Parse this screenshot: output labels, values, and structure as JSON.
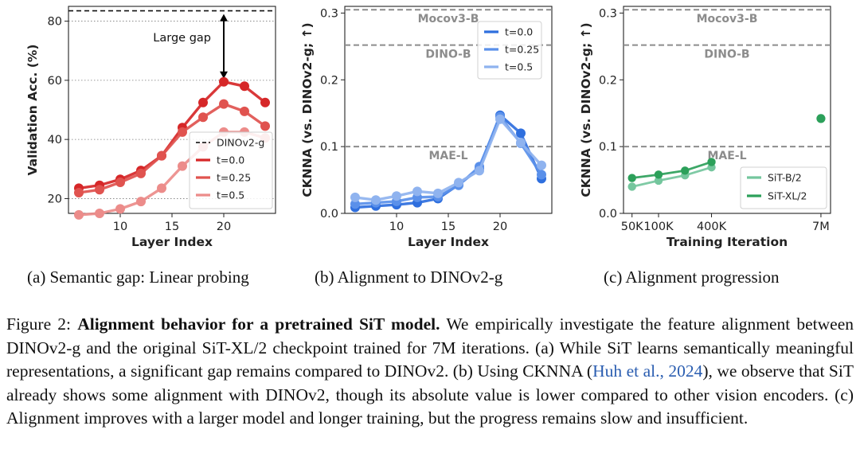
{
  "chart_data": [
    {
      "type": "line",
      "panel": "a",
      "xlabel": "Layer Index",
      "ylabel": "Validation Acc. (%)",
      "xlim": [
        5,
        25
      ],
      "ylim": [
        15,
        85
      ],
      "xticks": [
        10,
        15,
        20
      ],
      "yticks": [
        20,
        40,
        60,
        80
      ],
      "grid": "horizontal dotted",
      "legend_position": "lower-right",
      "legend": [
        "DINOv2-g",
        "t=0.0",
        "t=0.25",
        "t=0.5"
      ],
      "reference_line": {
        "name": "DINOv2-g",
        "value": 83.5,
        "style": "dashed black"
      },
      "annotation": {
        "text": "Large gap",
        "from": 83.5,
        "to": 59.5,
        "x": 20
      },
      "x": [
        6,
        8,
        10,
        12,
        14,
        16,
        18,
        20,
        22,
        24
      ],
      "series": [
        {
          "name": "t=0.0",
          "color": "#d62728",
          "values": [
            23.5,
            24.5,
            26.5,
            29.5,
            34.5,
            44,
            52.5,
            59.5,
            58,
            52.5
          ]
        },
        {
          "name": "t=0.25",
          "color": "#e0534f",
          "values": [
            22,
            23,
            25.5,
            28.5,
            34.5,
            42.5,
            47.5,
            52,
            49.5,
            44.5
          ]
        },
        {
          "name": "t=0.5",
          "color": "#ec8c8a",
          "values": [
            14.5,
            15,
            16.5,
            19,
            23.5,
            31,
            37.5,
            42.5,
            42.5,
            40.5
          ]
        }
      ]
    },
    {
      "type": "line",
      "panel": "b",
      "xlabel": "Layer Index",
      "ylabel": "CKNNA (vs. DINOv2-g; ↑)",
      "xlim": [
        5,
        25
      ],
      "ylim": [
        0,
        0.31
      ],
      "xticks": [
        10,
        15,
        20
      ],
      "yticks": [
        0.0,
        0.1,
        0.2,
        0.3
      ],
      "ytick_labels": [
        "0.0",
        "0.1",
        "0.2",
        "0.3"
      ],
      "legend_position": "upper-right",
      "legend": [
        "t=0.0",
        "t=0.25",
        "t=0.5"
      ],
      "reference_lines": [
        {
          "name": "Mocov3-B",
          "value": 0.305
        },
        {
          "name": "DINO-B",
          "value": 0.252
        },
        {
          "name": "MAE-L",
          "value": 0.1
        }
      ],
      "x": [
        6,
        8,
        10,
        12,
        14,
        16,
        18,
        20,
        22,
        24
      ],
      "series": [
        {
          "name": "t=0.0",
          "color": "#2f6fde",
          "values": [
            0.009,
            0.011,
            0.013,
            0.016,
            0.022,
            0.043,
            0.067,
            0.147,
            0.12,
            0.052
          ]
        },
        {
          "name": "t=0.25",
          "color": "#5a90ea",
          "values": [
            0.014,
            0.016,
            0.018,
            0.024,
            0.025,
            0.042,
            0.07,
            0.145,
            0.105,
            0.058
          ]
        },
        {
          "name": "t=0.5",
          "color": "#8fb3ef",
          "values": [
            0.024,
            0.02,
            0.026,
            0.033,
            0.03,
            0.046,
            0.064,
            0.141,
            0.106,
            0.072
          ]
        }
      ]
    },
    {
      "type": "line",
      "panel": "c",
      "xlabel": "Training Iteration",
      "ylabel": "CKNNA (vs. DINOv2-g; ↑)",
      "xscale": "log",
      "xlim": [
        40000,
        9000000
      ],
      "ylim": [
        0,
        0.31
      ],
      "xticks": [
        50000,
        100000,
        400000,
        7000000
      ],
      "xtick_labels": [
        "50K",
        "100K",
        "400K",
        "7M"
      ],
      "yticks": [
        0.0,
        0.1,
        0.2,
        0.3
      ],
      "ytick_labels": [
        "0.0",
        "0.1",
        "0.2",
        "0.3"
      ],
      "legend_position": "lower-right",
      "legend": [
        "SiT-B/2",
        "SiT-XL/2"
      ],
      "reference_lines": [
        {
          "name": "Mocov3-B",
          "value": 0.305
        },
        {
          "name": "DINO-B",
          "value": 0.252
        },
        {
          "name": "MAE-L",
          "value": 0.1
        }
      ],
      "series": [
        {
          "name": "SiT-B/2",
          "color": "#74c69d",
          "x": [
            50000,
            100000,
            200000,
            400000
          ],
          "values": [
            0.04,
            0.049,
            0.057,
            0.069
          ]
        },
        {
          "name": "SiT-XL/2",
          "color": "#2ca05a",
          "x": [
            50000,
            100000,
            200000,
            400000
          ],
          "values": [
            0.053,
            0.058,
            0.064,
            0.077
          ]
        },
        {
          "name": "SiT-XL/2 (7M)",
          "color": "#2ca05a",
          "x": [
            7000000
          ],
          "values": [
            0.142
          ],
          "markers_only": true
        }
      ]
    }
  ],
  "subcaptions": {
    "a": "(a) Semantic gap: Linear probing",
    "b": "(b) Alignment to DINOv2-g",
    "c": "(c) Alignment progression"
  },
  "caption": {
    "label": "Figure 2:",
    "title": "Alignment behavior for a pretrained SiT model.",
    "text_1": "We empirically investigate the feature alignment between DINOv2-g and the original SiT-XL/2 checkpoint trained for 7M iterations. (a) While SiT learns semantically meaningful representations, a significant gap remains compared to DINOv2. (b) Using CKNNA (",
    "citation": "Huh et al., 2024",
    "text_2": "), we observe that SiT already shows some alignment with DINOv2, though its absolute value is lower compared to other vision encoders. (c) Alignment improves with a larger model and longer training, but the progress remains slow and insufficient."
  }
}
